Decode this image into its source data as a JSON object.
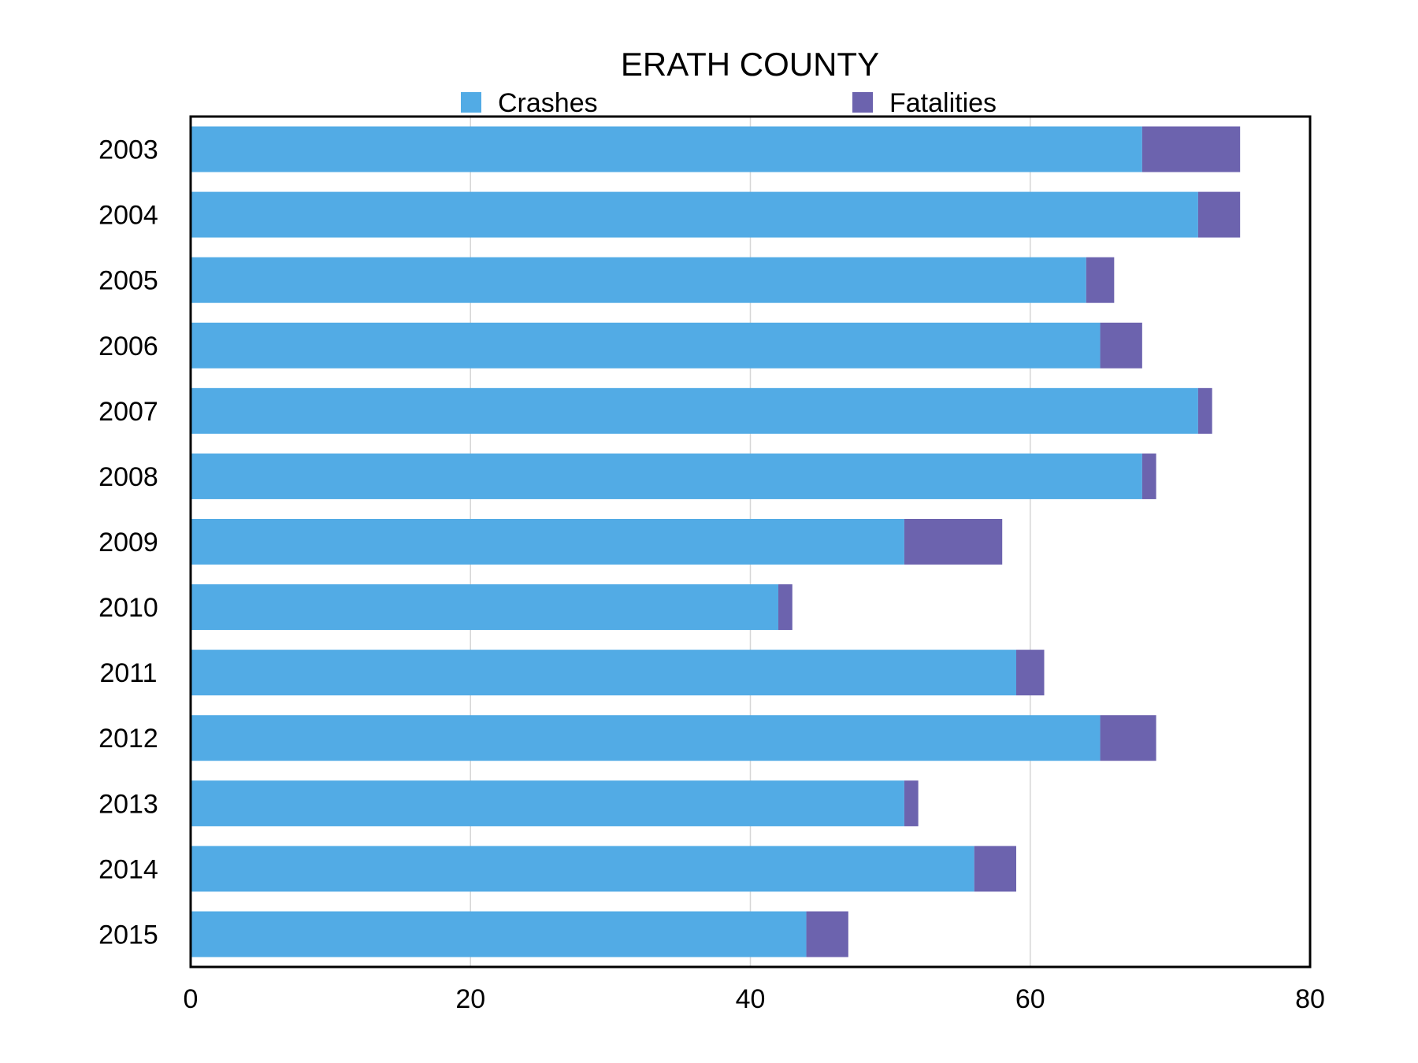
{
  "chart_data": {
    "type": "bar",
    "orientation": "horizontal",
    "stacked": true,
    "title": "ERATH COUNTY",
    "xlabel": "",
    "ylabel": "",
    "xlim": [
      0,
      80
    ],
    "x_ticks": [
      "0",
      "20",
      "40",
      "60",
      "80"
    ],
    "x_tick_values": [
      0,
      20,
      40,
      60,
      80
    ],
    "grid": "vertical",
    "legend_position": "top",
    "categories": [
      "2003",
      "2004",
      "2005",
      "2006",
      "2007",
      "2008",
      "2009",
      "2010",
      "2011",
      "2012",
      "2013",
      "2014",
      "2015"
    ],
    "series": [
      {
        "name": "Crashes",
        "color": "#52abe5",
        "values": [
          68,
          72,
          64,
          65,
          72,
          68,
          51,
          42,
          59,
          65,
          51,
          56,
          44
        ]
      },
      {
        "name": "Fatalities",
        "color": "#6c63ae",
        "values": [
          7,
          3,
          2,
          3,
          1,
          1,
          7,
          1,
          2,
          4,
          1,
          3,
          3
        ]
      }
    ]
  }
}
